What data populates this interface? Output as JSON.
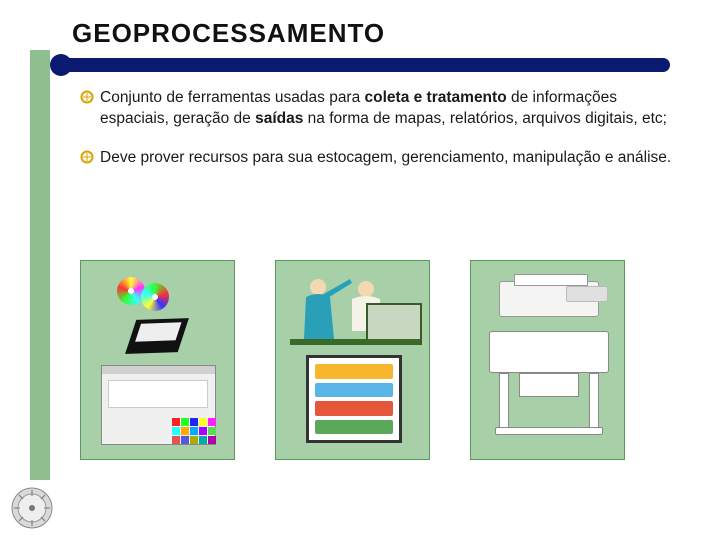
{
  "title": "GEOPROCESSAMENTO",
  "colors": {
    "title_bar": "#0a1a70",
    "green_stripe": "#8fbf8f",
    "panel_bg": "#a8d0a8",
    "panel_border": "#5a9a5a",
    "bullet_ring": "#d9a400"
  },
  "bullets": [
    {
      "runs": [
        {
          "t": "Conjunto de ferramentas usadas para  "
        },
        {
          "t": "coleta e tratamento",
          "b": true
        },
        {
          "t": " de informações espaciais, geração de "
        },
        {
          "t": "saídas",
          "b": true
        },
        {
          "t": " na forma de mapas, relatórios, arquivos digitais, etc;"
        }
      ]
    },
    {
      "runs": [
        {
          "t": " Deve prover recursos para sua estocagem, gerenciamento, manipulação e análise."
        }
      ]
    }
  ],
  "panels": {
    "count": 3,
    "storage": {
      "cell_colors": [
        "#f22",
        "#2f2",
        "#22f",
        "#ff2",
        "#f2f",
        "#2ff",
        "#fa0",
        "#0af",
        "#a0f",
        "#5d5",
        "#d55",
        "#55d",
        "#aa0",
        "#0aa",
        "#a0a"
      ]
    },
    "analysis": {
      "screen_rows": [
        "#f7b62e",
        "#5ab4e5",
        "#e5573b",
        "#5aa85a"
      ]
    }
  }
}
